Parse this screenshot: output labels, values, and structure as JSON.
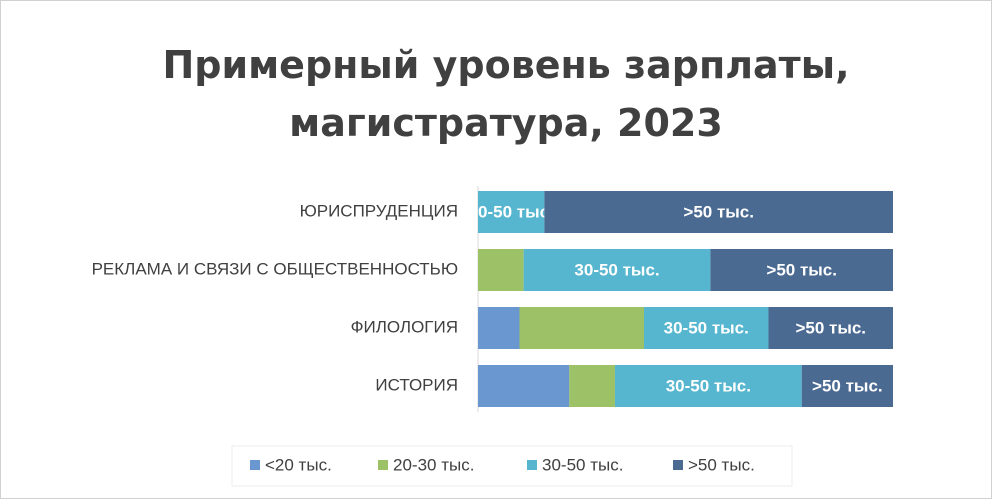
{
  "chart_data": {
    "type": "stacked_bar_horizontal_100",
    "title": "Примерный уровень зарплаты, магистратура, 2023",
    "categories": [
      "ЮРИСПРУДЕНЦИЯ",
      "РЕКЛАМА И СВЯЗИ С ОБЩЕСТВЕННОСТЬЮ",
      "ФИЛОЛОГИЯ",
      "ИСТОРИЯ"
    ],
    "xlim": [
      0,
      100
    ],
    "series": [
      {
        "name": "<20 тыс.",
        "color": "#6a97cf",
        "values": [
          0,
          0,
          10,
          22
        ],
        "show_labels": false
      },
      {
        "name": "20-30 тыс.",
        "color": "#9cc167",
        "values": [
          0,
          11,
          30,
          11
        ],
        "show_labels": false
      },
      {
        "name": "30-50 тыс.",
        "color": "#57b6cf",
        "values": [
          16,
          45,
          30,
          45
        ],
        "show_labels": true
      },
      {
        "name": ">50 тыс.",
        "color": "#4b6a92",
        "values": [
          84,
          44,
          30,
          22
        ],
        "show_labels": true
      }
    ],
    "legend": "bottom"
  }
}
